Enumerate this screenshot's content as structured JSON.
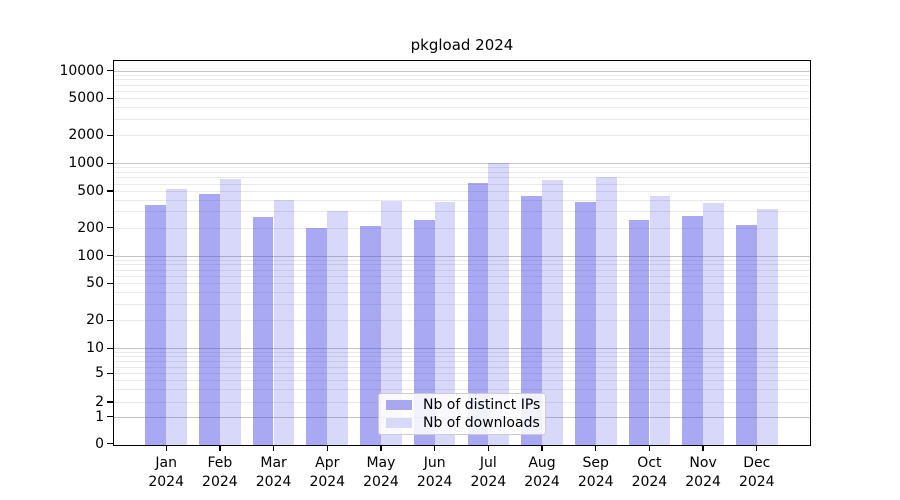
{
  "chart_data": {
    "type": "bar",
    "title": "pkgload 2024",
    "categories": [
      "Jan 2024",
      "Feb 2024",
      "Mar 2024",
      "Apr 2024",
      "May 2024",
      "Jun 2024",
      "Jul 2024",
      "Aug 2024",
      "Sep 2024",
      "Oct 2024",
      "Nov 2024",
      "Dec 2024"
    ],
    "x_tick_labels": [
      "Jan\n2024",
      "Feb\n2024",
      "Mar\n2024",
      "Apr\n2024",
      "May\n2024",
      "Jun\n2024",
      "Jul\n2024",
      "Aug\n2024",
      "Sep\n2024",
      "Oct\n2024",
      "Nov\n2024",
      "Dec\n2024"
    ],
    "series": [
      {
        "name": "Nb of distinct IPs",
        "values": [
          355,
          465,
          262,
          198,
          208,
          240,
          605,
          445,
          380,
          245,
          270,
          215
        ],
        "color_hex": "#a8a8f1",
        "fill_rgba": "rgba(70,70,230,0.47)"
      },
      {
        "name": "Nb of downloads",
        "values": [
          530,
          680,
          395,
          300,
          390,
          378,
          1010,
          660,
          700,
          445,
          370,
          320
        ],
        "color_hex": "#d8d8f8",
        "fill_rgba": "rgba(70,70,230,0.21)"
      }
    ],
    "yscale": "symlog",
    "ylabel": "",
    "xlabel": "",
    "yticks": [
      0,
      1,
      2,
      5,
      10,
      20,
      50,
      100,
      200,
      500,
      1000,
      2000,
      5000,
      10000
    ],
    "ylim": [
      0,
      13000
    ],
    "grid": true,
    "legend_position": "lower center",
    "colors": {
      "major_gridline": "#c3c3c3",
      "minor_gridline": "#e9e9e9",
      "axis": "#000000",
      "background": "#ffffff",
      "legend_border": "#cccccc"
    }
  }
}
